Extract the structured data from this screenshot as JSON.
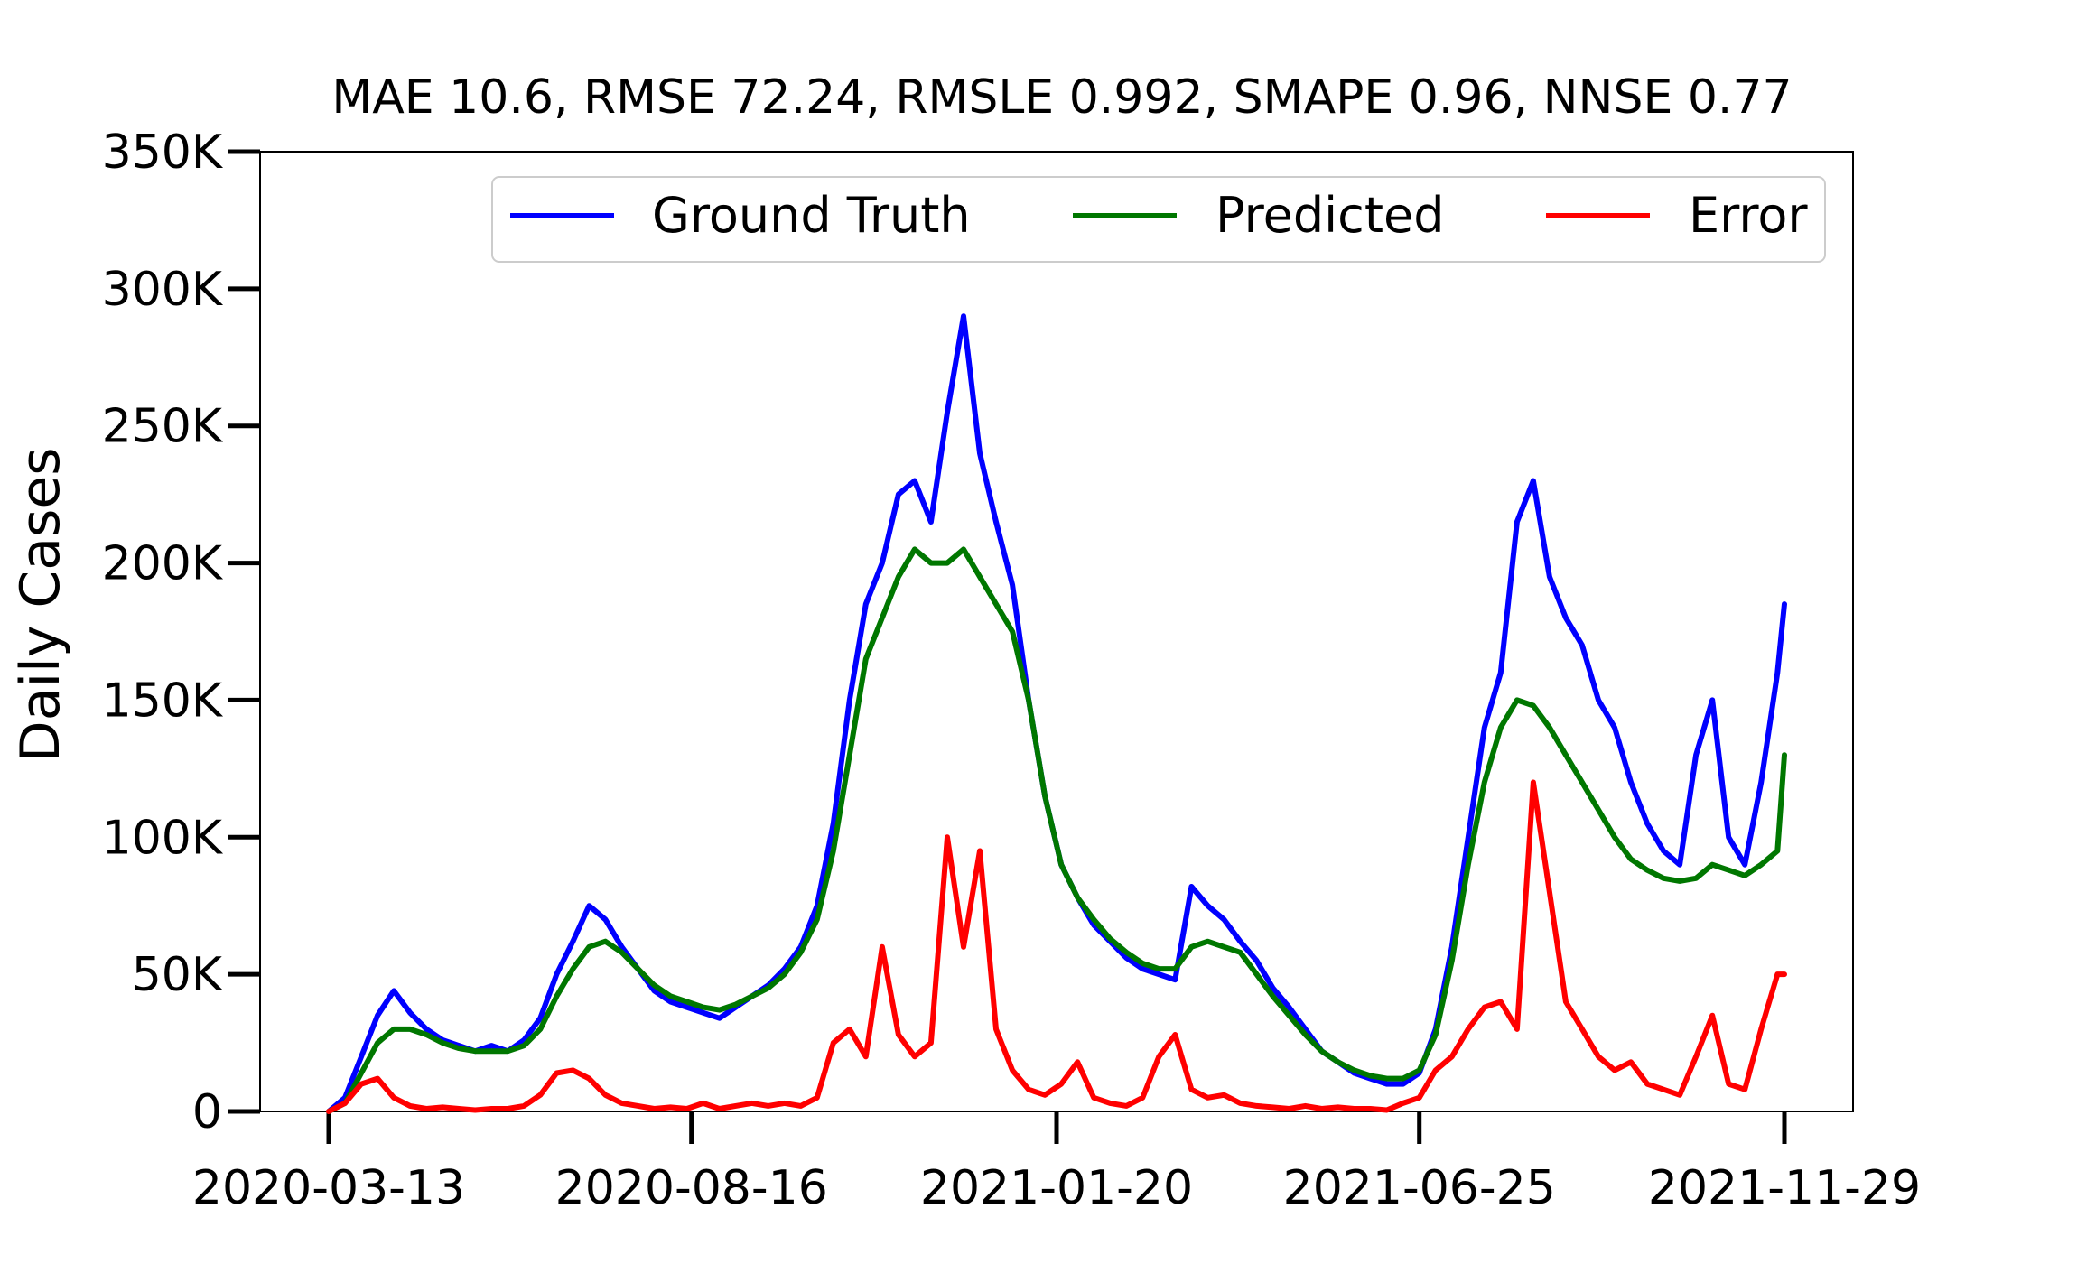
{
  "chart_data": {
    "type": "line",
    "title": "MAE 10.6, RMSE 72.24, RMSLE 0.992, SMAPE 0.96, NNSE 0.77",
    "xlabel": "",
    "ylabel": "Daily Cases",
    "x_start": "2020-03-13",
    "x_end": "2021-11-29",
    "x_tick_labels": [
      "2020-03-13",
      "2020-08-16",
      "2021-01-20",
      "2021-06-25",
      "2021-11-29"
    ],
    "ylim": [
      0,
      350000
    ],
    "y_ticks": [
      0,
      50000,
      100000,
      150000,
      200000,
      250000,
      300000,
      350000
    ],
    "y_tick_labels": [
      "0",
      "50K",
      "100K",
      "150K",
      "200K",
      "250K",
      "300K",
      "350K"
    ],
    "grid": false,
    "legend_position": "top-right",
    "series": [
      {
        "name": "Ground Truth",
        "color": "#0000ff",
        "x": [
          "2020-03-13",
          "2020-03-20",
          "2020-03-27",
          "2020-04-03",
          "2020-04-10",
          "2020-04-17",
          "2020-04-24",
          "2020-05-01",
          "2020-05-08",
          "2020-05-15",
          "2020-05-22",
          "2020-05-29",
          "2020-06-05",
          "2020-06-12",
          "2020-06-19",
          "2020-06-26",
          "2020-07-03",
          "2020-07-10",
          "2020-07-17",
          "2020-07-24",
          "2020-07-31",
          "2020-08-07",
          "2020-08-14",
          "2020-08-21",
          "2020-08-28",
          "2020-09-04",
          "2020-09-11",
          "2020-09-18",
          "2020-09-25",
          "2020-10-02",
          "2020-10-09",
          "2020-10-16",
          "2020-10-23",
          "2020-10-30",
          "2020-11-06",
          "2020-11-13",
          "2020-11-20",
          "2020-11-27",
          "2020-12-04",
          "2020-12-11",
          "2020-12-18",
          "2020-12-25",
          "2021-01-01",
          "2021-01-08",
          "2021-01-15",
          "2021-01-22",
          "2021-01-29",
          "2021-02-05",
          "2021-02-12",
          "2021-02-19",
          "2021-02-26",
          "2021-03-05",
          "2021-03-12",
          "2021-03-19",
          "2021-03-26",
          "2021-04-02",
          "2021-04-09",
          "2021-04-16",
          "2021-04-23",
          "2021-04-30",
          "2021-05-07",
          "2021-05-14",
          "2021-05-21",
          "2021-05-28",
          "2021-06-04",
          "2021-06-11",
          "2021-06-18",
          "2021-06-25",
          "2021-07-02",
          "2021-07-09",
          "2021-07-16",
          "2021-07-23",
          "2021-07-30",
          "2021-08-06",
          "2021-08-13",
          "2021-08-20",
          "2021-08-27",
          "2021-09-03",
          "2021-09-10",
          "2021-09-17",
          "2021-09-24",
          "2021-10-01",
          "2021-10-08",
          "2021-10-15",
          "2021-10-22",
          "2021-10-29",
          "2021-11-05",
          "2021-11-12",
          "2021-11-19",
          "2021-11-26",
          "2021-11-29"
        ],
        "values": [
          0,
          5000,
          20000,
          35000,
          44000,
          36000,
          30000,
          26000,
          24000,
          22000,
          24000,
          22000,
          26000,
          34000,
          50000,
          62000,
          75000,
          70000,
          60000,
          52000,
          44000,
          40000,
          38000,
          36000,
          34000,
          38000,
          42000,
          46000,
          52000,
          60000,
          75000,
          105000,
          150000,
          185000,
          200000,
          225000,
          230000,
          215000,
          255000,
          290000,
          240000,
          215000,
          192000,
          150000,
          115000,
          90000,
          78000,
          68000,
          62000,
          56000,
          52000,
          50000,
          48000,
          82000,
          75000,
          70000,
          62000,
          55000,
          45000,
          38000,
          30000,
          22000,
          18000,
          14000,
          12000,
          10000,
          10000,
          14000,
          30000,
          60000,
          100000,
          140000,
          160000,
          215000,
          230000,
          195000,
          180000,
          170000,
          150000,
          140000,
          120000,
          105000,
          95000,
          90000,
          130000,
          150000,
          100000,
          90000,
          120000,
          160000,
          185000
        ]
      },
      {
        "name": "Predicted",
        "color": "#007700",
        "x": [
          "2020-03-13",
          "2020-03-20",
          "2020-03-27",
          "2020-04-03",
          "2020-04-10",
          "2020-04-17",
          "2020-04-24",
          "2020-05-01",
          "2020-05-08",
          "2020-05-15",
          "2020-05-22",
          "2020-05-29",
          "2020-06-05",
          "2020-06-12",
          "2020-06-19",
          "2020-06-26",
          "2020-07-03",
          "2020-07-10",
          "2020-07-17",
          "2020-07-24",
          "2020-07-31",
          "2020-08-07",
          "2020-08-14",
          "2020-08-21",
          "2020-08-28",
          "2020-09-04",
          "2020-09-11",
          "2020-09-18",
          "2020-09-25",
          "2020-10-02",
          "2020-10-09",
          "2020-10-16",
          "2020-10-23",
          "2020-10-30",
          "2020-11-06",
          "2020-11-13",
          "2020-11-20",
          "2020-11-27",
          "2020-12-04",
          "2020-12-11",
          "2020-12-18",
          "2020-12-25",
          "2021-01-01",
          "2021-01-08",
          "2021-01-15",
          "2021-01-22",
          "2021-01-29",
          "2021-02-05",
          "2021-02-12",
          "2021-02-19",
          "2021-02-26",
          "2021-03-05",
          "2021-03-12",
          "2021-03-19",
          "2021-03-26",
          "2021-04-02",
          "2021-04-09",
          "2021-04-16",
          "2021-04-23",
          "2021-04-30",
          "2021-05-07",
          "2021-05-14",
          "2021-05-21",
          "2021-05-28",
          "2021-06-04",
          "2021-06-11",
          "2021-06-18",
          "2021-06-25",
          "2021-07-02",
          "2021-07-09",
          "2021-07-16",
          "2021-07-23",
          "2021-07-30",
          "2021-08-06",
          "2021-08-13",
          "2021-08-20",
          "2021-08-27",
          "2021-09-03",
          "2021-09-10",
          "2021-09-17",
          "2021-09-24",
          "2021-10-01",
          "2021-10-08",
          "2021-10-15",
          "2021-10-22",
          "2021-10-29",
          "2021-11-05",
          "2021-11-12",
          "2021-11-19",
          "2021-11-26",
          "2021-11-29"
        ],
        "values": [
          0,
          3000,
          14000,
          25000,
          30000,
          30000,
          28000,
          25000,
          23000,
          22000,
          22000,
          22000,
          24000,
          30000,
          42000,
          52000,
          60000,
          62000,
          58000,
          52000,
          46000,
          42000,
          40000,
          38000,
          37000,
          39000,
          42000,
          45000,
          50000,
          58000,
          70000,
          95000,
          130000,
          165000,
          180000,
          195000,
          205000,
          200000,
          200000,
          205000,
          195000,
          185000,
          175000,
          150000,
          115000,
          90000,
          78000,
          70000,
          63000,
          58000,
          54000,
          52000,
          52000,
          60000,
          62000,
          60000,
          58000,
          50000,
          42000,
          35000,
          28000,
          22000,
          18000,
          15000,
          13000,
          12000,
          12000,
          15000,
          28000,
          55000,
          90000,
          120000,
          140000,
          150000,
          148000,
          140000,
          130000,
          120000,
          110000,
          100000,
          92000,
          88000,
          85000,
          84000,
          85000,
          90000,
          88000,
          86000,
          90000,
          95000,
          130000
        ]
      },
      {
        "name": "Error",
        "color": "#ff0000",
        "x": [
          "2020-03-13",
          "2020-03-20",
          "2020-03-27",
          "2020-04-03",
          "2020-04-10",
          "2020-04-17",
          "2020-04-24",
          "2020-05-01",
          "2020-05-08",
          "2020-05-15",
          "2020-05-22",
          "2020-05-29",
          "2020-06-05",
          "2020-06-12",
          "2020-06-19",
          "2020-06-26",
          "2020-07-03",
          "2020-07-10",
          "2020-07-17",
          "2020-07-24",
          "2020-07-31",
          "2020-08-07",
          "2020-08-14",
          "2020-08-21",
          "2020-08-28",
          "2020-09-04",
          "2020-09-11",
          "2020-09-18",
          "2020-09-25",
          "2020-10-02",
          "2020-10-09",
          "2020-10-16",
          "2020-10-23",
          "2020-10-30",
          "2020-11-06",
          "2020-11-13",
          "2020-11-20",
          "2020-11-27",
          "2020-12-04",
          "2020-12-11",
          "2020-12-18",
          "2020-12-25",
          "2021-01-01",
          "2021-01-08",
          "2021-01-15",
          "2021-01-22",
          "2021-01-29",
          "2021-02-05",
          "2021-02-12",
          "2021-02-19",
          "2021-02-26",
          "2021-03-05",
          "2021-03-12",
          "2021-03-19",
          "2021-03-26",
          "2021-04-02",
          "2021-04-09",
          "2021-04-16",
          "2021-04-23",
          "2021-04-30",
          "2021-05-07",
          "2021-05-14",
          "2021-05-21",
          "2021-05-28",
          "2021-06-04",
          "2021-06-11",
          "2021-06-18",
          "2021-06-25",
          "2021-07-02",
          "2021-07-09",
          "2021-07-16",
          "2021-07-23",
          "2021-07-30",
          "2021-08-06",
          "2021-08-13",
          "2021-08-20",
          "2021-08-27",
          "2021-09-03",
          "2021-09-10",
          "2021-09-17",
          "2021-09-24",
          "2021-10-01",
          "2021-10-08",
          "2021-10-15",
          "2021-10-22",
          "2021-10-29",
          "2021-11-05",
          "2021-11-12",
          "2021-11-19",
          "2021-11-26",
          "2021-11-29"
        ],
        "values": [
          0,
          3000,
          10000,
          12000,
          5000,
          2000,
          1000,
          1500,
          1000,
          500,
          1000,
          1000,
          2000,
          6000,
          14000,
          15000,
          12000,
          6000,
          3000,
          2000,
          1000,
          1500,
          1000,
          3000,
          1000,
          2000,
          3000,
          2000,
          3000,
          2000,
          5000,
          25000,
          30000,
          20000,
          60000,
          28000,
          20000,
          25000,
          100000,
          60000,
          95000,
          30000,
          15000,
          8000,
          6000,
          10000,
          18000,
          5000,
          3000,
          2000,
          5000,
          20000,
          28000,
          8000,
          5000,
          6000,
          3000,
          2000,
          1500,
          1000,
          2000,
          1000,
          1500,
          1000,
          1000,
          500,
          3000,
          5000,
          15000,
          20000,
          30000,
          38000,
          40000,
          30000,
          120000,
          80000,
          40000,
          30000,
          20000,
          15000,
          18000,
          10000,
          8000,
          6000,
          20000,
          35000,
          10000,
          8000,
          30000,
          50000,
          50000
        ]
      }
    ]
  },
  "legend": {
    "items": [
      "Ground Truth",
      "Predicted",
      "Error"
    ]
  }
}
